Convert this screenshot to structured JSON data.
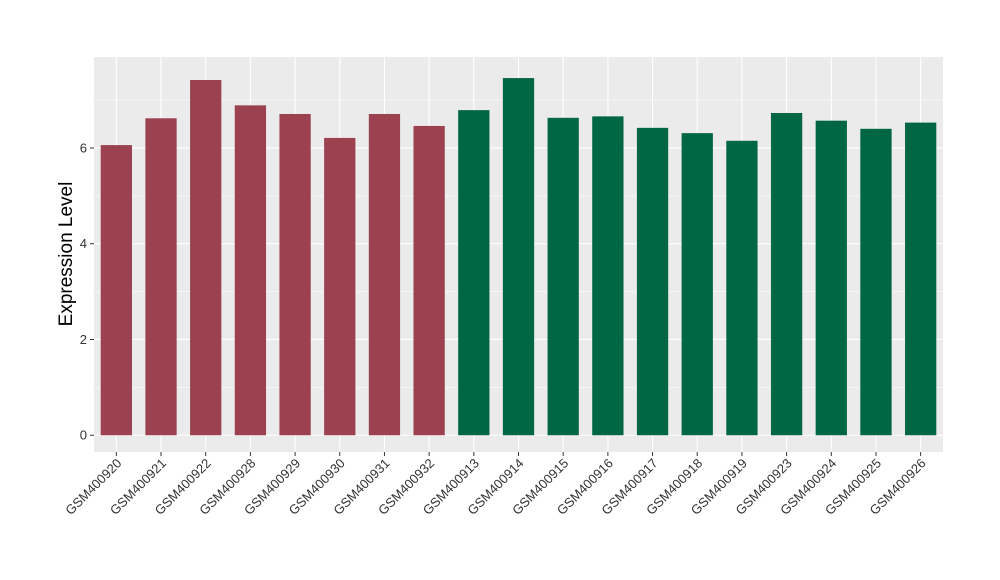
{
  "chart_data": {
    "type": "bar",
    "ylabel": "Expression Level",
    "xlabel": "",
    "ylim": [
      -0.35,
      7.9
    ],
    "yticks": [
      0,
      2,
      4,
      6
    ],
    "grid": true,
    "background": "#ebebeb",
    "grid_color": "#ffffff",
    "categories": [
      "GSM400920",
      "GSM400921",
      "GSM400922",
      "GSM400928",
      "GSM400929",
      "GSM400930",
      "GSM400931",
      "GSM400932",
      "GSM400913",
      "GSM400914",
      "GSM400915",
      "GSM400916",
      "GSM400917",
      "GSM400918",
      "GSM400919",
      "GSM400923",
      "GSM400924",
      "GSM400925",
      "GSM400926"
    ],
    "values": [
      6.06,
      6.62,
      7.42,
      6.89,
      6.71,
      6.21,
      6.71,
      6.46,
      6.79,
      7.46,
      6.63,
      6.66,
      6.42,
      6.31,
      6.15,
      6.73,
      6.57,
      6.4,
      6.53
    ],
    "groups": [
      "g1",
      "g1",
      "g1",
      "g1",
      "g1",
      "g1",
      "g1",
      "g1",
      "g2",
      "g2",
      "g2",
      "g2",
      "g2",
      "g2",
      "g2",
      "g2",
      "g2",
      "g2",
      "g2"
    ],
    "group_colors": {
      "g1": "#9b414f",
      "g2": "#006643"
    }
  }
}
